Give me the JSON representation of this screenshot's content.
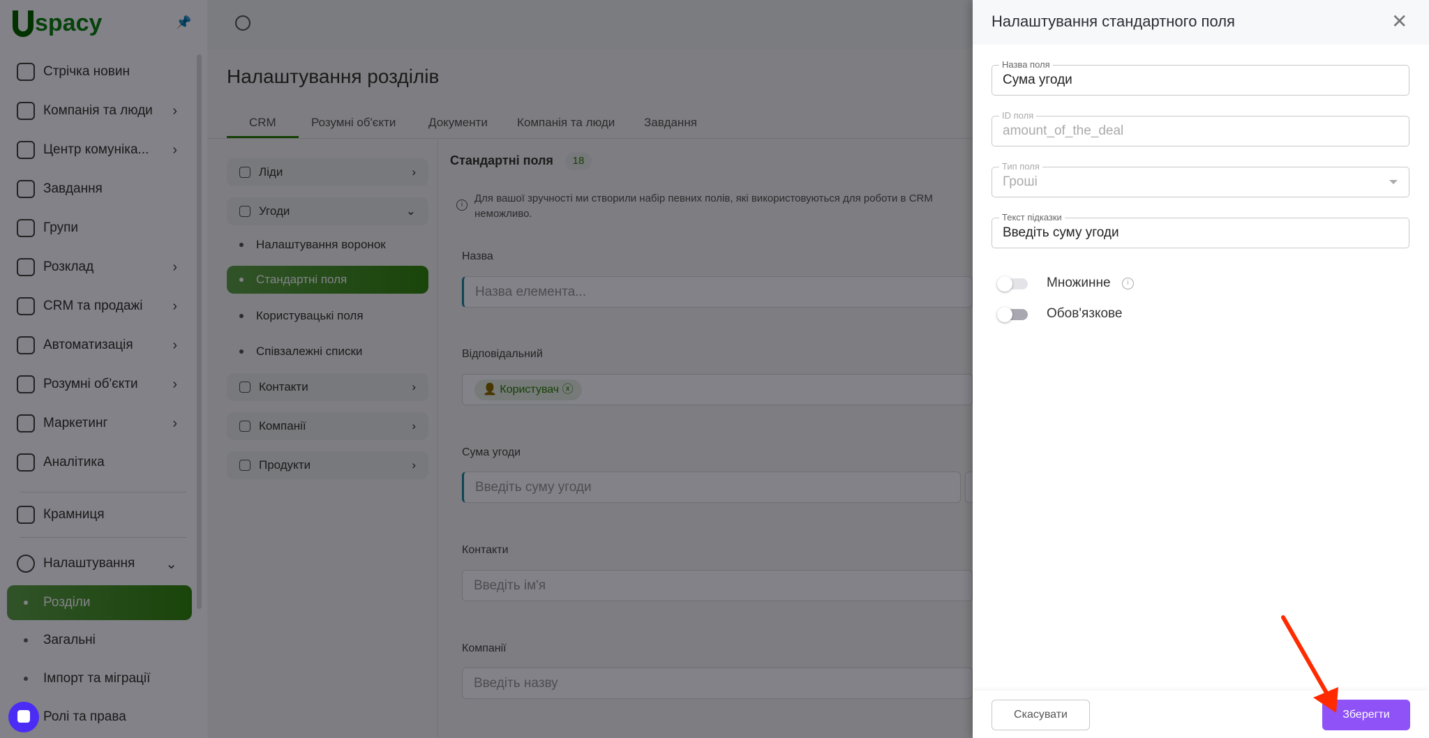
{
  "app": {
    "logo": "Uspacy"
  },
  "sidebar": {
    "items": [
      {
        "label": "Стрічка новин",
        "icon": "home-icon",
        "chev": false
      },
      {
        "label": "Компанія та люди",
        "icon": "building-icon",
        "chev": true
      },
      {
        "label": "Центр комуніка...",
        "icon": "chat-icon",
        "chev": true
      },
      {
        "label": "Завдання",
        "icon": "check-circle-icon",
        "chev": false
      },
      {
        "label": "Групи",
        "icon": "users-icon",
        "chev": false
      },
      {
        "label": "Розклад",
        "icon": "calendar-icon",
        "chev": true
      },
      {
        "label": "CRM та продажі",
        "icon": "database-icon",
        "chev": true
      },
      {
        "label": "Автоматизація",
        "icon": "lightning-icon",
        "chev": true
      },
      {
        "label": "Розумні об'єкти",
        "icon": "scan-icon",
        "chev": true
      },
      {
        "label": "Маркетинг",
        "icon": "marketing-icon",
        "chev": true
      },
      {
        "label": "Аналітика",
        "icon": "chart-icon",
        "chev": false
      }
    ],
    "store": "Крамниця",
    "settings": "Налаштування",
    "settings_sub": [
      "Розділи",
      "Загальні",
      "Імпорт та міграції",
      "Ролі та права"
    ]
  },
  "main": {
    "title": "Налаштування розділів",
    "tabs": [
      "CRM",
      "Розумні об'єкти",
      "Документи",
      "Компанія та люди",
      "Завдання"
    ],
    "list": {
      "leads": "Ліди",
      "deals": "Угоди",
      "deal_sub": [
        "Налаштування воронок",
        "Стандартні поля",
        "Користувацькі поля",
        "Співзалежні списки"
      ],
      "contacts": "Контакти",
      "companies": "Компанії",
      "products": "Продукти"
    },
    "section_title": "Стандартні поля",
    "count": "18",
    "info": "Для вашої зручності ми створили набір певних полів, які використовуються для роботи в CRM",
    "info2": "неможливо.",
    "fields": [
      {
        "label": "Назва",
        "placeholder": "Назва елемента..."
      },
      {
        "label": "Відповідальний",
        "chip": "Користувач"
      },
      {
        "label": "Сума угоди",
        "placeholder": "Введіть суму угоди"
      },
      {
        "label": "Контакти",
        "placeholder": "Введіть ім'я"
      },
      {
        "label": "Компанії",
        "placeholder": "Введіть назву"
      }
    ]
  },
  "panel": {
    "title": "Налаштування стандартного поля",
    "name_label": "Назва поля",
    "name_value": "Сума угоди",
    "id_label": "ID поля",
    "id_value": "amount_of_the_deal",
    "type_label": "Тип поля",
    "type_value": "Гроші",
    "hint_label": "Текст підказки",
    "hint_value": "Введіть суму угоди",
    "multiple": "Множинне",
    "multiple_on": false,
    "required": "Обов'язкове",
    "required_on": false,
    "cancel": "Скасувати",
    "save": "Зберегти"
  },
  "colors": {
    "accent": "#8f52f6",
    "annotation_arrow": "#ff2a00",
    "required_marker": "#e0505a"
  }
}
